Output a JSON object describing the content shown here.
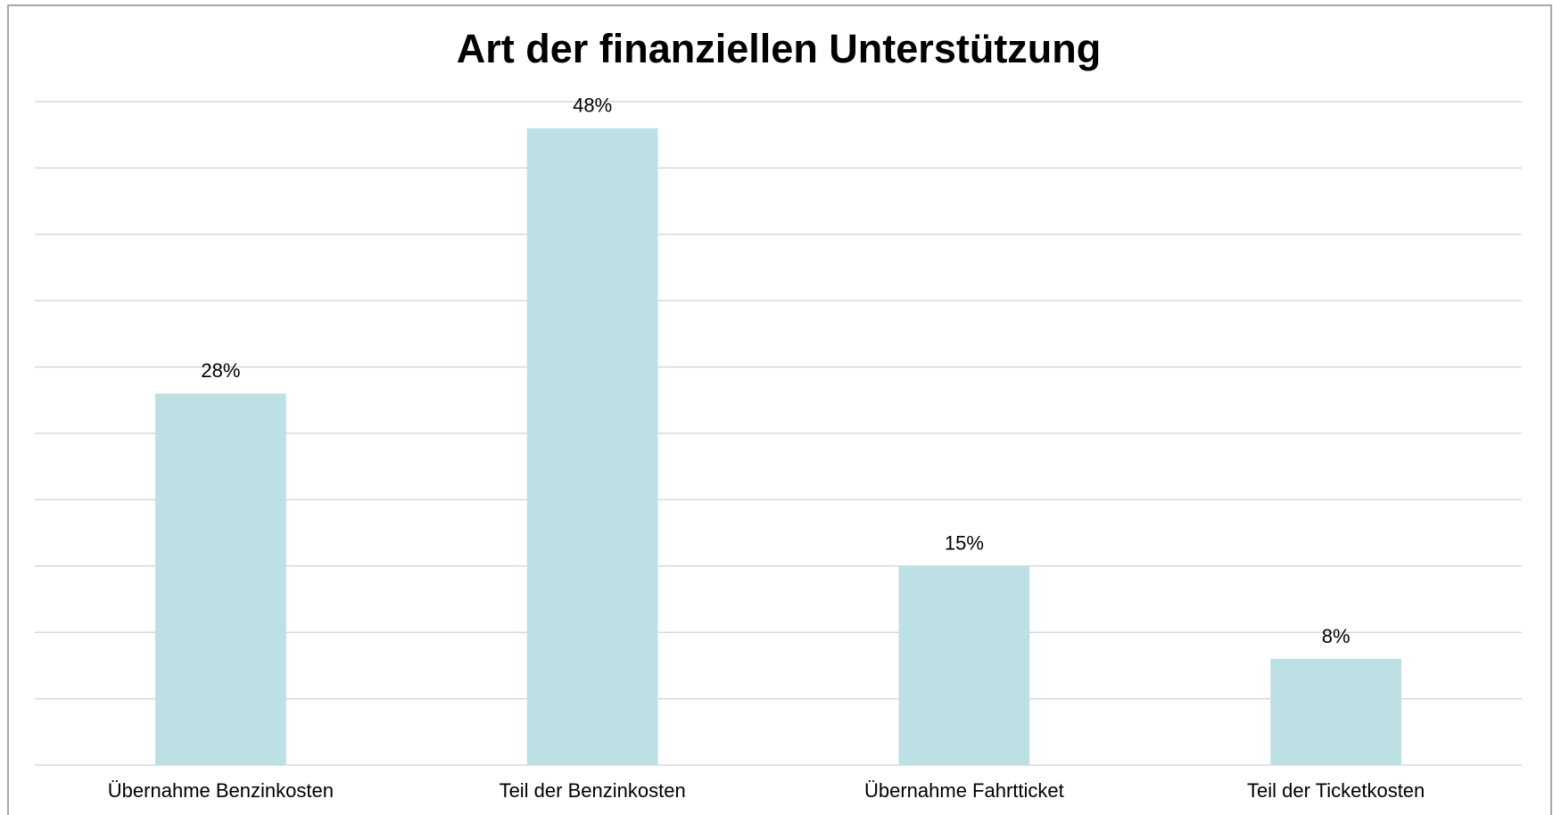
{
  "chart_data": {
    "type": "bar",
    "title": "Art der finanziellen Unterstützung",
    "categories": [
      "Übernahme Benzinkosten",
      "Teil der Benzinkosten",
      "Übernahme Fahrtticket",
      "Teil der Ticketkosten"
    ],
    "values": [
      28,
      48,
      15,
      8
    ],
    "value_labels": [
      "28%",
      "48%",
      "15%",
      "8%"
    ],
    "color": "#bce0e3",
    "ylim": [
      0,
      50
    ],
    "yticks": [
      0,
      5,
      10,
      15,
      20,
      25,
      30,
      35,
      40,
      45,
      50
    ],
    "grid": true
  }
}
